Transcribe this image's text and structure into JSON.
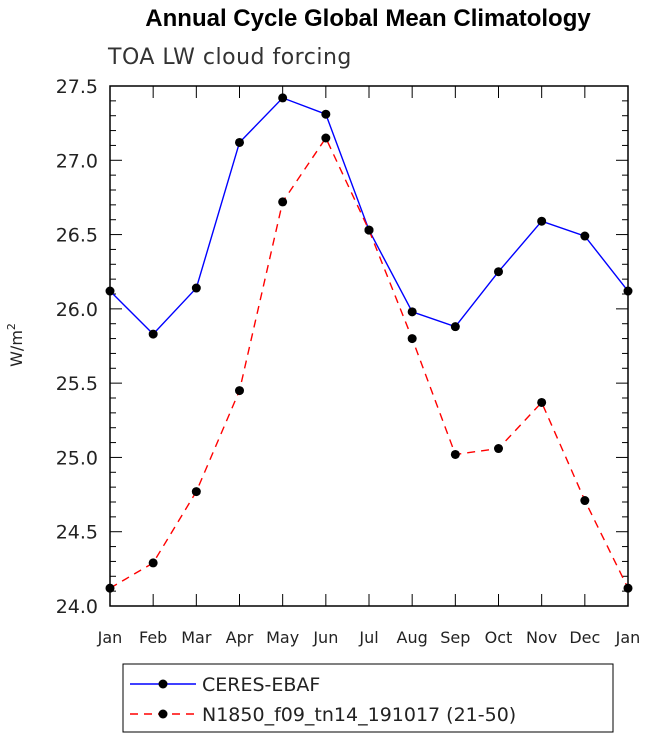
{
  "chart_data": {
    "type": "line",
    "title": "Annual Cycle Global Mean Climatology",
    "subtitle": "TOA LW cloud forcing",
    "ylabel": "W/m",
    "ylabel_sup": "2",
    "xlabel": "",
    "ylim": [
      24.0,
      27.5
    ],
    "yticks": [
      24.0,
      24.5,
      25.0,
      25.5,
      26.0,
      26.5,
      27.0,
      27.5
    ],
    "ytick_labels": [
      "24.0",
      "24.5",
      "25.0",
      "25.5",
      "26.0",
      "26.5",
      "27.0",
      "27.5"
    ],
    "categories": [
      "Jan",
      "Feb",
      "Mar",
      "Apr",
      "May",
      "Jun",
      "Jul",
      "Aug",
      "Sep",
      "Oct",
      "Nov",
      "Dec",
      "Jan"
    ],
    "series": [
      {
        "name": "CERES-EBAF",
        "color": "#0000ff",
        "dash": "solid",
        "values": [
          26.12,
          25.83,
          26.14,
          27.12,
          27.42,
          27.31,
          26.53,
          25.98,
          25.88,
          26.25,
          26.59,
          26.49,
          26.12
        ]
      },
      {
        "name": "N1850_f09_tn14_191017 (21-50)",
        "color": "#ff0000",
        "dash": "dashed",
        "values": [
          24.12,
          24.29,
          24.77,
          25.45,
          26.72,
          27.15,
          26.53,
          25.8,
          25.02,
          25.06,
          25.37,
          24.71,
          24.12
        ]
      }
    ],
    "legend_position": "bottom"
  }
}
